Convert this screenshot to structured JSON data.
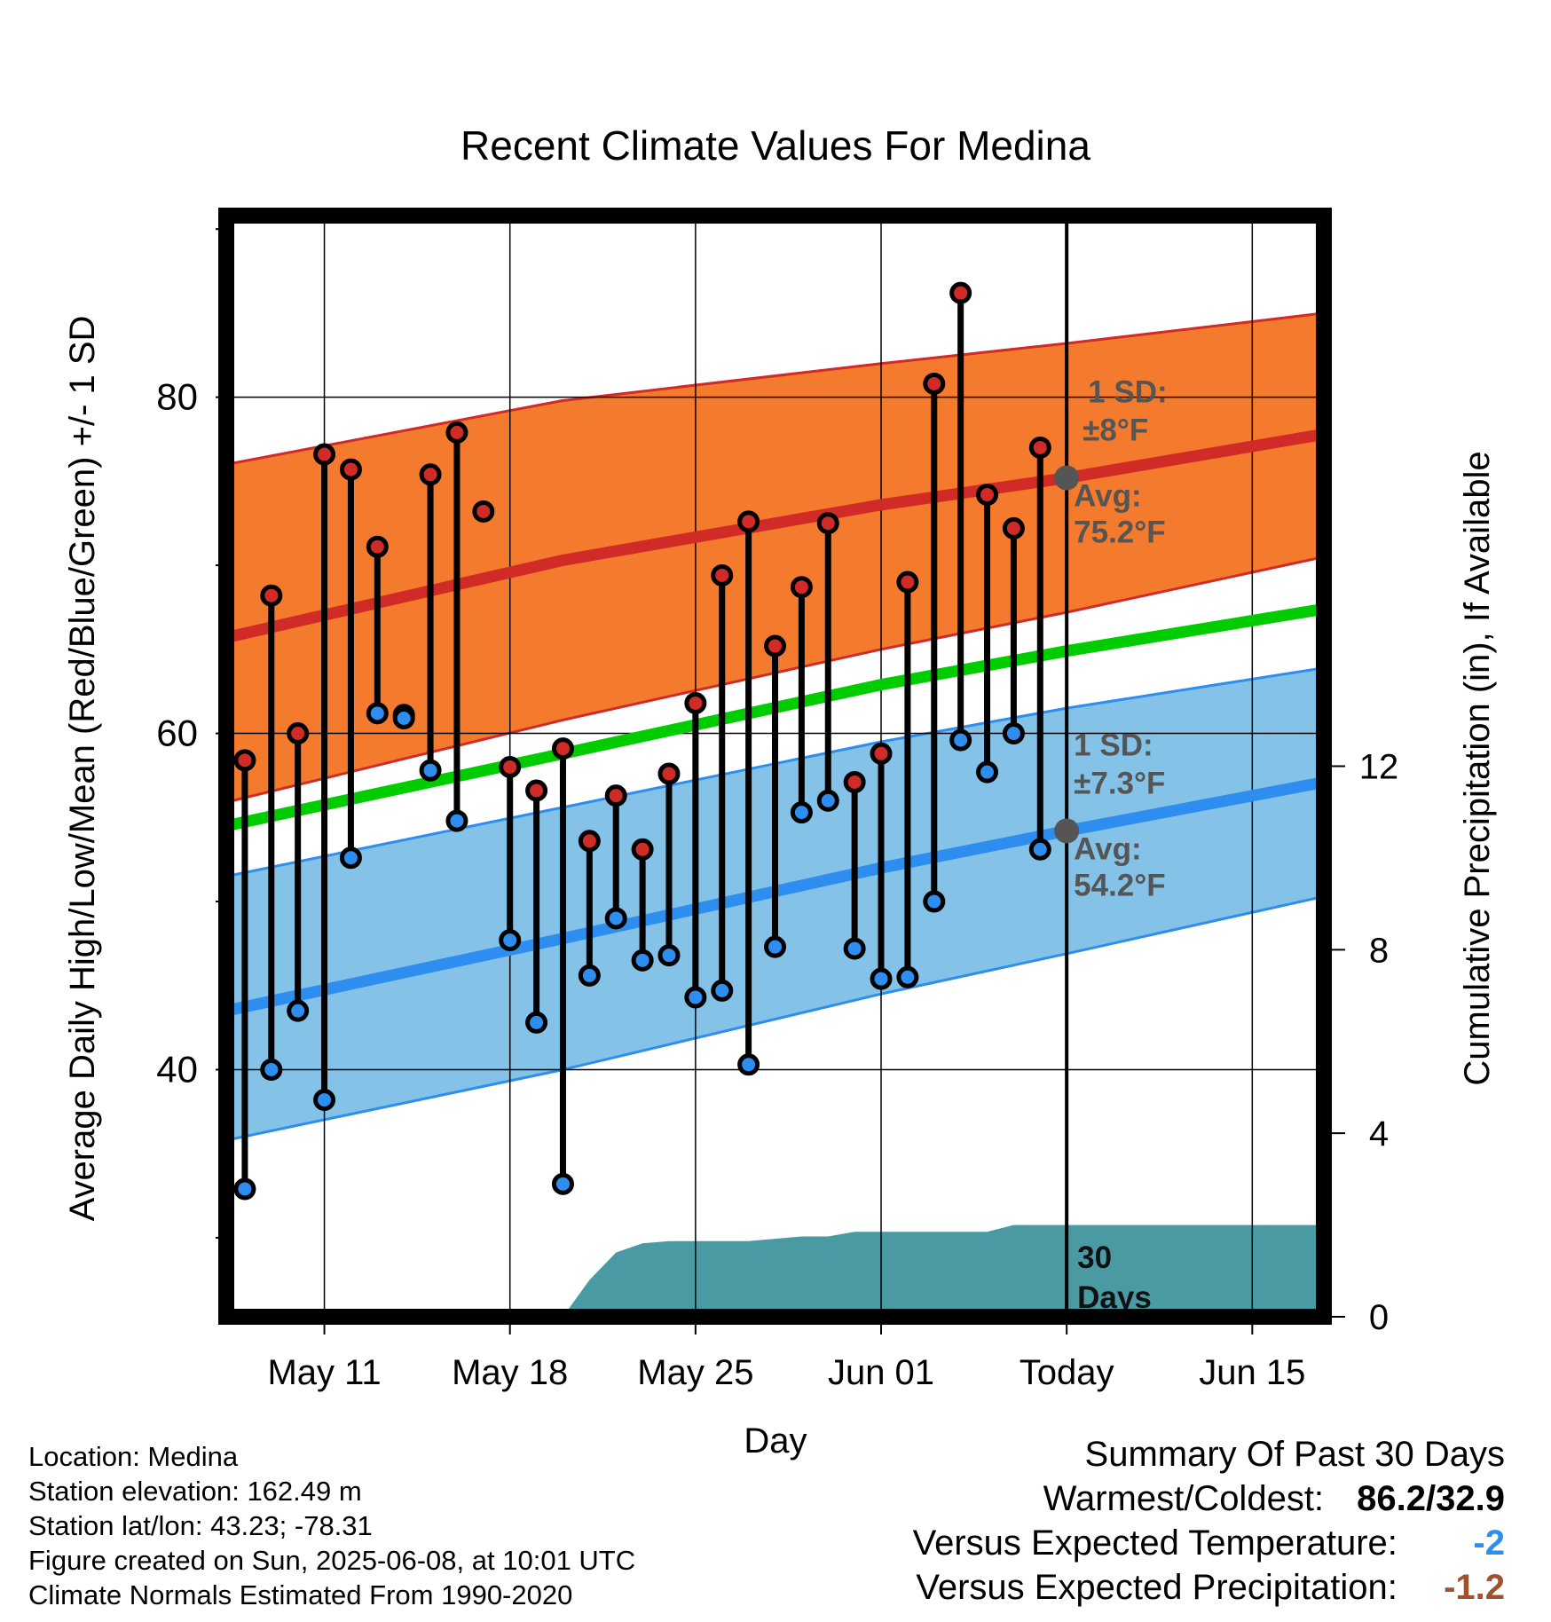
{
  "chart_data": {
    "type": "line",
    "title": "Recent Climate Values For Medina",
    "xlabel": "Day",
    "ylabel": "Average Daily High/Low/Mean (Red/Blue/Green) +/- 1 SD",
    "ylabel_right": "Cumulative Precipitation (in), If Available",
    "x_ticks": [
      {
        "day": 11,
        "label": "May 11"
      },
      {
        "day": 18,
        "label": "May 18"
      },
      {
        "day": 25,
        "label": "May 25"
      },
      {
        "day": 32,
        "label": "Jun 01"
      },
      {
        "day": 39,
        "label": "Today"
      },
      {
        "day": 46,
        "label": "Jun 15"
      }
    ],
    "x_range_days": [
      7.3,
      48.7
    ],
    "y_left_ticks": [
      40,
      60,
      80
    ],
    "y_left_range": [
      25.3,
      90.8
    ],
    "y_right_ticks": [
      0,
      4,
      8,
      12
    ],
    "y_right_range": [
      0,
      24
    ],
    "daily": {
      "days": [
        8,
        9,
        10,
        11,
        12,
        13,
        14,
        15,
        16,
        17,
        18,
        19,
        20,
        21,
        22,
        23,
        24,
        25,
        26,
        27,
        28,
        29,
        30,
        31,
        32,
        33,
        34,
        35,
        36,
        37,
        38
      ],
      "high": [
        58.4,
        68.2,
        60.0,
        76.6,
        75.7,
        71.1,
        61.1,
        75.4,
        77.9,
        73.2,
        58.0,
        56.6,
        59.1,
        53.6,
        56.3,
        53.1,
        57.6,
        61.8,
        69.4,
        72.6,
        65.2,
        68.7,
        72.5,
        57.1,
        58.8,
        69.0,
        80.8,
        86.2,
        74.2,
        72.2,
        77.0
      ],
      "low": [
        32.9,
        40.0,
        43.5,
        38.2,
        52.6,
        61.2,
        60.9,
        57.8,
        54.8,
        null,
        47.7,
        42.8,
        33.2,
        45.6,
        49.0,
        46.5,
        46.8,
        44.3,
        44.7,
        40.3,
        47.3,
        55.3,
        56.0,
        47.2,
        45.4,
        45.5,
        50.0,
        59.6,
        57.7,
        60.0,
        53.1
      ]
    },
    "normals": {
      "days": [
        7.3,
        20,
        32,
        39,
        48.7
      ],
      "high_mean": [
        65.7,
        70.3,
        73.6,
        75.2,
        77.8
      ],
      "high_plus_sd": [
        76.0,
        79.8,
        82.0,
        83.2,
        85.0
      ],
      "high_minus_sd": [
        55.9,
        60.8,
        65.0,
        67.2,
        70.5
      ],
      "low_mean": [
        43.5,
        47.8,
        52.0,
        54.2,
        57.1
      ],
      "low_plus_sd": [
        51.5,
        55.6,
        59.5,
        61.5,
        63.9
      ],
      "low_minus_sd": [
        35.8,
        40.0,
        44.5,
        46.9,
        50.3
      ],
      "daily_mean": [
        54.5,
        58.8,
        62.9,
        64.9,
        67.4
      ]
    },
    "precip_cumulative": {
      "days": [
        20,
        20.5,
        21,
        22,
        23,
        24,
        25,
        26,
        27,
        28,
        29,
        30,
        31,
        32,
        33,
        34,
        35,
        36,
        37,
        38,
        48.7
      ],
      "values": [
        0,
        0.4,
        0.8,
        1.4,
        1.6,
        1.65,
        1.65,
        1.65,
        1.65,
        1.7,
        1.75,
        1.75,
        1.85,
        1.85,
        1.85,
        1.85,
        1.85,
        1.85,
        2.0,
        2.0,
        2.0
      ]
    },
    "annotations": {
      "high_sd_title": "1 SD:",
      "high_sd_value": "±8°F",
      "high_avg_title": "Avg:",
      "high_avg_value": "75.2°F",
      "low_sd_title": "1 SD:",
      "low_sd_value": "±7.3°F",
      "low_avg_title": "Avg:",
      "low_avg_value": "54.2°F",
      "precip_days_1": "30",
      "precip_days_2": "Days"
    },
    "colors": {
      "high_band": "#f47a2e",
      "high_line": "#d12b27",
      "low_band": "#85c2e8",
      "low_line": "#2d8ef0",
      "mean_line": "#00cc00",
      "precip_fill": "#4a9aa3",
      "high_marker": "#d12b27",
      "low_marker": "#2d8ef0",
      "annotation_text": "#555555"
    },
    "grid": true
  },
  "info": {
    "location": "Location: Medina",
    "elevation": "Station elevation: 162.49 m",
    "latlon": "Station lat/lon: 43.23; -78.31",
    "created": "Figure created on Sun, 2025-06-08, at 10:01 UTC",
    "normals": "Climate Normals Estimated From 1990-2020"
  },
  "summary": {
    "title": "Summary Of Past 30 Days",
    "warm_cold_label": "Warmest/Coldest:",
    "warm_cold_value": "86.2/32.9",
    "temp_label": "Versus Expected Temperature:",
    "temp_value": "-2",
    "temp_color": "#2d8ef0",
    "precip_label": "Versus Expected Precipitation:",
    "precip_value": "-1.2",
    "precip_color": "#a0522d"
  }
}
